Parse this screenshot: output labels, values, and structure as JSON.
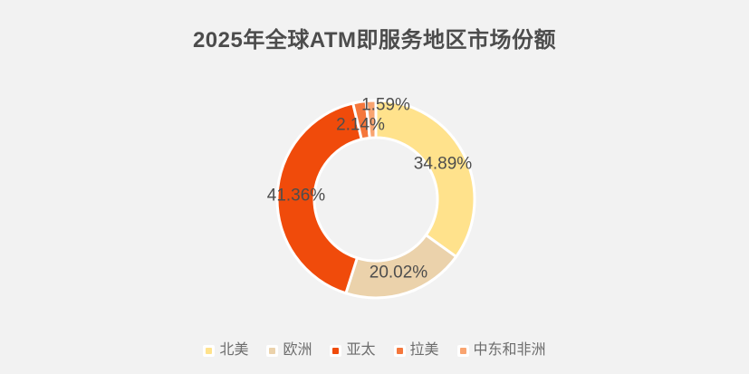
{
  "page": {
    "background_color": "#f2f2f2",
    "title": "2025年全球ATM即服务地区市场份额"
  },
  "chart_data": {
    "type": "pie",
    "subtype": "donut",
    "title": "2025年全球ATM即服务地区市场份额",
    "categories": [
      "北美",
      "欧洲",
      "亚太",
      "拉美",
      "中东和非洲"
    ],
    "values": [
      34.89,
      20.02,
      41.36,
      2.14,
      1.59
    ],
    "value_labels": [
      "34.89%",
      "20.02%",
      "41.36%",
      "2.14%",
      "1.59%"
    ],
    "unit": "%",
    "colors": [
      "#ffe28c",
      "#ebd2ab",
      "#f04b0b",
      "#f5773c",
      "#f9a470"
    ],
    "start_angle": "12-oclock",
    "direction": "clockwise",
    "slice_border_color": "#ffffff",
    "label_color": "#4d4d4d",
    "title_color": "#4c4c4c",
    "legend_position": "bottom",
    "legend_text_color": "#6e6e6e",
    "legend_entries": [
      "北美",
      "欧洲",
      "亚太",
      "拉美",
      "中东和非洲"
    ]
  }
}
